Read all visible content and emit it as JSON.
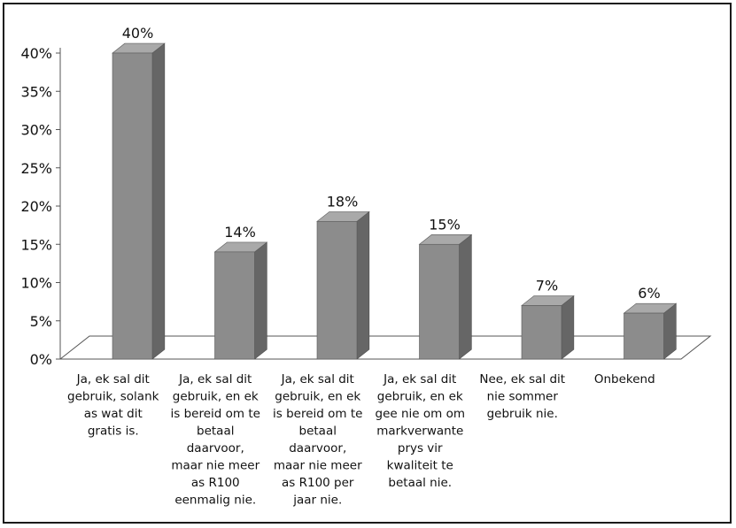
{
  "chart_data": {
    "type": "bar",
    "title": "",
    "xlabel": "",
    "ylabel": "",
    "categories": [
      "Ja, ek sal dit gebruik, solank as wat dit gratis is.",
      "Ja, ek sal dit gebruik, en ek is bereid om te betaal daarvoor, maar nie meer as R100 eenmalig nie.",
      "Ja, ek sal dit gebruik, en ek is bereid om te betaal daarvoor, maar nie meer as R100 per jaar nie.",
      "Ja, ek sal dit gebruik, en ek gee nie om om markverwante prys vir kwaliteit te betaal nie.",
      "Nee, ek sal dit nie sommer gebruik nie.",
      "Onbekend"
    ],
    "category_lines": [
      [
        "Ja, ek sal dit",
        "gebruik, solank",
        "as wat dit",
        "gratis is."
      ],
      [
        "Ja, ek sal dit",
        "gebruik, en ek",
        "is bereid om te",
        "betaal",
        "daarvoor,",
        "maar nie meer",
        "as R100",
        "eenmalig nie."
      ],
      [
        "Ja, ek sal dit",
        "gebruik, en ek",
        "is bereid om te",
        "betaal",
        "daarvoor,",
        "maar nie meer",
        "as R100 per",
        "jaar nie."
      ],
      [
        "Ja, ek sal dit",
        "gebruik, en ek",
        "gee nie om om",
        "markverwante",
        "prys vir",
        "kwaliteit te",
        "betaal nie."
      ],
      [
        "Nee, ek sal dit",
        "nie sommer",
        "gebruik nie."
      ],
      [
        "Onbekend"
      ]
    ],
    "values": [
      40,
      14,
      18,
      15,
      7,
      6
    ],
    "data_labels": [
      "40%",
      "14%",
      "18%",
      "15%",
      "7%",
      "6%"
    ],
    "ylim": [
      0,
      40
    ],
    "y_ticks": [
      "0%",
      "5%",
      "10%",
      "15%",
      "20%",
      "25%",
      "30%",
      "35%",
      "40%"
    ],
    "legend": "none",
    "grid": false,
    "style": "3d-column",
    "colors": {
      "bar_front": "#8c8c8c",
      "bar_top": "#a9a9a9",
      "bar_side": "#666666",
      "floor": "#ffffff",
      "axis": "#555555"
    }
  }
}
